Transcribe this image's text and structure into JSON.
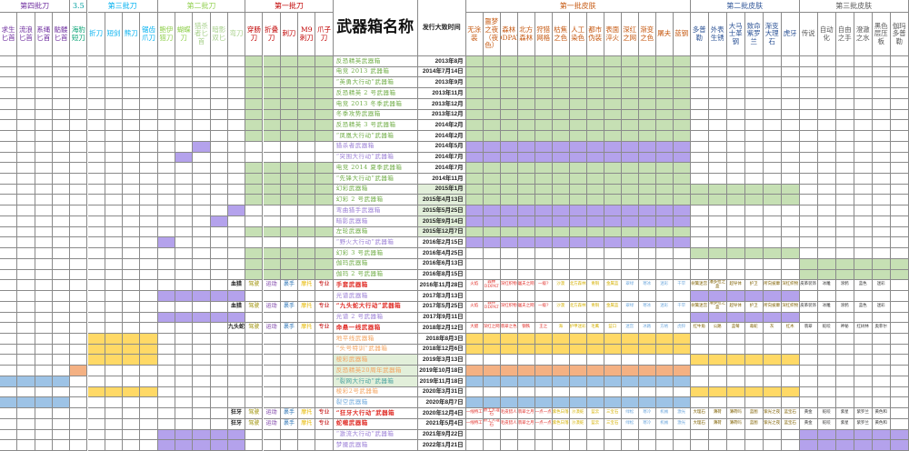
{
  "colors": {
    "green": "#c6e0b4",
    "purple": "#b4a2ec",
    "yellow": "#ffd966",
    "orange": "#f4b183",
    "blue": "#9dc3e6",
    "lightgreen": "#e2efda"
  },
  "groups": [
    {
      "label": "第四批刀",
      "from": 0,
      "to": 3,
      "color": "#7030a0"
    },
    {
      "label": "3.5",
      "from": 4,
      "to": 4,
      "color": "#00a0a0"
    },
    {
      "label": "第三批刀",
      "from": 5,
      "to": 8,
      "color": "#00b0f0"
    },
    {
      "label": "第二批刀",
      "from": 9,
      "to": 13,
      "color": "#92d050"
    },
    {
      "label": "第一批刀",
      "from": 14,
      "to": 18,
      "color": "#c00000"
    },
    {
      "label": "第一批皮肤",
      "from": 21,
      "to": 33,
      "color": "#c65911"
    },
    {
      "label": "第二批皮肤",
      "from": 34,
      "to": 39,
      "color": "#2f5597"
    },
    {
      "label": "第三批皮肤",
      "from": 40,
      "to": 45,
      "color": "#595959"
    }
  ],
  "title": "武器箱名称",
  "date_header": "发行大致时间",
  "columns": [
    {
      "label": "求生匕首",
      "color": "#7030a0"
    },
    {
      "label": "流浪匕首",
      "color": "#7030a0"
    },
    {
      "label": "系绳匕首",
      "color": "#7030a0"
    },
    {
      "label": "骷髅匕首",
      "color": "#7030a0"
    },
    {
      "label": "海豹短刀",
      "color": "#00a070"
    },
    {
      "label": "折刀",
      "color": "#00b0f0"
    },
    {
      "label": "短剑",
      "color": "#00b0f0"
    },
    {
      "label": "熊刀",
      "color": "#00b0f0"
    },
    {
      "label": "锯齿爪刀",
      "color": "#00b0f0"
    },
    {
      "label": "鲍伊猎刀",
      "color": "#92d050"
    },
    {
      "label": "蝴蝶刀",
      "color": "#92d050"
    },
    {
      "label": "猎杀者匕首",
      "color": "#a9d18e"
    },
    {
      "label": "暗影双匕",
      "color": "#a9d18e"
    },
    {
      "label": "弯刀",
      "color": "#a9d18e"
    },
    {
      "label": "穿肠刀",
      "color": "#c00000"
    },
    {
      "label": "折叠刀",
      "color": "#c00000"
    },
    {
      "label": "刺刀",
      "color": "#c00000"
    },
    {
      "label": "M9刺刀",
      "color": "#c00000"
    },
    {
      "label": "爪子刀",
      "color": "#c00000"
    },
    {
      "label": "",
      "color": ""
    },
    {
      "label": "",
      "color": ""
    },
    {
      "label": "无涂装",
      "color": "#c65911"
    },
    {
      "label": "噩梦之夜（夜色）",
      "color": "#c65911"
    },
    {
      "label": "森林DDPAT",
      "color": "#c65911"
    },
    {
      "label": "北方森林",
      "color": "#c65911"
    },
    {
      "label": "狩猎网格",
      "color": "#c65911"
    },
    {
      "label": "枯焦之色",
      "color": "#c65911"
    },
    {
      "label": "人工染色",
      "color": "#c65911"
    },
    {
      "label": "都市伪装",
      "color": "#c65911"
    },
    {
      "label": "表面淬火",
      "color": "#c65911"
    },
    {
      "label": "深红之网",
      "color": "#c65911"
    },
    {
      "label": "渐变之色",
      "color": "#c65911"
    },
    {
      "label": "屠夫",
      "color": "#c65911"
    },
    {
      "label": "蓝钢",
      "color": "#c65911"
    },
    {
      "label": "多普勒",
      "color": "#2f5597"
    },
    {
      "label": "外表生锈",
      "color": "#2f5597"
    },
    {
      "label": "大马士革钢",
      "color": "#2f5597"
    },
    {
      "label": "致命紫罗兰",
      "color": "#2f5597"
    },
    {
      "label": "渐变大理石",
      "color": "#2f5597"
    },
    {
      "label": "虎牙",
      "color": "#2f5597"
    },
    {
      "label": "传说",
      "color": "#595959"
    },
    {
      "label": "自动化",
      "color": "#595959"
    },
    {
      "label": "自由之手",
      "color": "#595959"
    },
    {
      "label": "澄澈之水",
      "color": "#595959"
    },
    {
      "label": "黑色层压板",
      "color": "#595959"
    },
    {
      "label": "伽玛多普勒",
      "color": "#595959"
    }
  ],
  "gloves": {
    "hunter_col": 13,
    "labels": [
      "驾驶",
      "运动",
      "裹手",
      "摩托",
      "专业"
    ],
    "colors": [
      "#9c8f00",
      "#7030a0",
      "#2e75b6",
      "#e6b800",
      "#c00000"
    ]
  },
  "rows": [
    {
      "name": "反恐精英武器箱",
      "date": "2013年8月",
      "tc": "#70ad47",
      "fills": [
        [
          14,
          18,
          "green"
        ],
        [
          21,
          33,
          "green"
        ]
      ]
    },
    {
      "name": "电竞 2013 武器箱",
      "date": "2014年7月14日",
      "tc": "#70ad47",
      "fills": [
        [
          14,
          18,
          "green"
        ],
        [
          21,
          33,
          "green"
        ]
      ]
    },
    {
      "name": "“英勇大行动”武器箱",
      "date": "2013年9月",
      "tc": "#70ad47",
      "fills": [
        [
          14,
          18,
          "green"
        ],
        [
          21,
          33,
          "green"
        ]
      ]
    },
    {
      "name": "反恐精英 2 号武器箱",
      "date": "2013年11月",
      "tc": "#70ad47",
      "fills": [
        [
          14,
          18,
          "green"
        ],
        [
          21,
          33,
          "green"
        ]
      ]
    },
    {
      "name": "电竞 2013 冬季武器箱",
      "date": "2013年12月",
      "tc": "#70ad47",
      "fills": [
        [
          14,
          18,
          "green"
        ],
        [
          21,
          33,
          "green"
        ]
      ]
    },
    {
      "name": "冬季攻势武器箱",
      "date": "2013年12月",
      "tc": "#70ad47",
      "fills": [
        [
          14,
          18,
          "green"
        ],
        [
          21,
          33,
          "green"
        ]
      ]
    },
    {
      "name": "反恐精英 3 号武器箱",
      "date": "2014年2月",
      "tc": "#70ad47",
      "fills": [
        [
          14,
          18,
          "green"
        ],
        [
          21,
          33,
          "green"
        ]
      ]
    },
    {
      "name": "“凤凰大行动”武器箱",
      "date": "2014年2月",
      "tc": "#70ad47",
      "fills": [
        [
          14,
          18,
          "green"
        ],
        [
          21,
          33,
          "green"
        ]
      ]
    },
    {
      "name": "猎杀者武器箱",
      "date": "2014年5月",
      "tc": "#9b7fd6",
      "fills": [
        [
          11,
          11,
          "purple"
        ],
        [
          21,
          33,
          "purple"
        ]
      ]
    },
    {
      "name": "“突围大行动”武器箱",
      "date": "2014年7月",
      "tc": "#9b7fd6",
      "fills": [
        [
          10,
          10,
          "purple"
        ],
        [
          21,
          33,
          "purple"
        ]
      ]
    },
    {
      "name": "电竞 2014 夏季武器箱",
      "date": "2014年7月",
      "tc": "#70ad47",
      "fills": [
        [
          14,
          18,
          "green"
        ],
        [
          21,
          33,
          "green"
        ]
      ]
    },
    {
      "name": "“先锋大行动”武器箱",
      "date": "2014年11月",
      "tc": "#70ad47",
      "fills": [
        [
          14,
          18,
          "green"
        ],
        [
          21,
          33,
          "green"
        ]
      ]
    },
    {
      "name": "幻彩武器箱",
      "date": "2015年1月",
      "tc": "#70ad47",
      "fills": [
        [
          14,
          18,
          "green"
        ],
        [
          20,
          20,
          "lightgreen"
        ],
        [
          21,
          33,
          "green"
        ],
        [
          34,
          39,
          "green"
        ]
      ]
    },
    {
      "name": "幻彩 2 号武器箱",
      "date": "2015年4月13日",
      "tc": "#70ad47",
      "fills": [
        [
          14,
          18,
          "green"
        ],
        [
          20,
          20,
          "lightgreen"
        ],
        [
          21,
          33,
          "green"
        ],
        [
          34,
          39,
          "green"
        ]
      ]
    },
    {
      "name": "弯曲猎手武器箱",
      "date": "2015年5月25日",
      "tc": "#9b7fd6",
      "fills": [
        [
          13,
          13,
          "purple"
        ],
        [
          20,
          20,
          "lightgreen"
        ],
        [
          21,
          33,
          "purple"
        ]
      ]
    },
    {
      "name": "暗影武器箱",
      "date": "2015年9月14日",
      "tc": "#9b7fd6",
      "fills": [
        [
          12,
          12,
          "purple"
        ],
        [
          20,
          20,
          "lightgreen"
        ],
        [
          21,
          33,
          "purple"
        ]
      ]
    },
    {
      "name": "左轮武器箱",
      "date": "2015年12月7日",
      "tc": "#70ad47",
      "fills": [
        [
          14,
          18,
          "green"
        ],
        [
          20,
          20,
          "lightgreen"
        ],
        [
          21,
          33,
          "green"
        ]
      ]
    },
    {
      "name": "“野火大行动”武器箱",
      "date": "2016年2月15日",
      "tc": "#9b7fd6",
      "fills": [
        [
          9,
          9,
          "purple"
        ],
        [
          21,
          33,
          "purple"
        ]
      ]
    },
    {
      "name": "幻彩 3 号武器箱",
      "date": "2016年4月25日",
      "tc": "#70ad47",
      "fills": [
        [
          14,
          18,
          "green"
        ],
        [
          34,
          39,
          "green"
        ]
      ]
    },
    {
      "name": "伽玛武器箱",
      "date": "2016年6月13日",
      "tc": "#70ad47",
      "fills": [
        [
          14,
          18,
          "green"
        ],
        [
          40,
          45,
          "green"
        ]
      ]
    },
    {
      "name": "伽玛 2 号武器箱",
      "date": "2016年8月15日",
      "tc": "#70ad47",
      "fills": [
        [
          14,
          18,
          "green"
        ],
        [
          40,
          45,
          "green"
        ]
      ]
    },
    {
      "name": "手套武器箱",
      "date": "2016年11月28日",
      "tc": "#e0302a",
      "bold": true,
      "hunter": "血猎",
      "skins": [
        "火焰",
        "森林DDPAT",
        "深红织物",
        "屠夫之网",
        "一级?",
        "沙漠",
        "北方森林",
        "青铜",
        "金属蓝",
        "翠绿",
        "寒冰",
        "迷彩",
        "干旱",
        "树篱迷宫",
        "潘多拉之盒",
        "超导体",
        "护卫",
        "所向披靡",
        "深红织物",
        "皮革装饰",
        "冰雕",
        "涂鸦",
        "蓝色",
        "迷彩",
        "",
        ""
      ],
      "fills": []
    },
    {
      "name": "光谱武器箱",
      "date": "2017年3月13日",
      "tc": "#9b7fd6",
      "fills": [
        [
          9,
          13,
          "purple"
        ],
        [
          34,
          39,
          "purple"
        ]
      ]
    },
    {
      "name": "“九头蛇大行动”武器箱",
      "date": "2017年5月25日",
      "tc": "#e0302a",
      "bold": true,
      "hunter": "血猎",
      "skins": [
        "火焰",
        "森林DDPAT",
        "深红织物",
        "屠夫之网",
        "一级?",
        "沙漠",
        "北方森林",
        "青铜",
        "金属蓝",
        "翠绿",
        "寒冰",
        "迷彩",
        "干旱",
        "树篱迷宫",
        "潘多拉之盒",
        "超导体",
        "护卫",
        "所向披靡",
        "深红织物",
        "皮革装饰",
        "冰雕",
        "涂鸦",
        "蓝色",
        "迷彩",
        "",
        ""
      ],
      "fills": []
    },
    {
      "name": "光谱 2 号武器箱",
      "date": "2017年9月11日",
      "tc": "#9b7fd6",
      "fills": [
        [
          9,
          13,
          "purple"
        ],
        [
          34,
          39,
          "purple"
        ]
      ]
    },
    {
      "name": "命悬一线武器箱",
      "date": "2018年2月12日",
      "tc": "#e0302a",
      "bold": true,
      "hunter": "九头蛇",
      "skins": [
        "大腊",
        "深红之网",
        "翡翠之色",
        "钢铁",
        "王之",
        "海",
        "护甲迷彩",
        "毛鹰",
        "蓝口",
        "迷宫",
        "冰路",
        "方格",
        "虎狩",
        "红牛角",
        "公路",
        "蓝莓",
        "毒蛇",
        "灰",
        "红木",
        "翡翠",
        "蛇咬",
        "神秘",
        "红树林",
        "奥菲尔",
        "",
        ""
      ],
      "fills": []
    },
    {
      "name": "地平线武器箱",
      "date": "2018年8月3日",
      "tc": "#f4a460",
      "fills": [
        [
          5,
          8,
          "yellow"
        ],
        [
          21,
          33,
          "yellow"
        ]
      ]
    },
    {
      "name": "“头号特训”武器箱",
      "date": "2018年12月6日",
      "tc": "#f4a460",
      "fills": [
        [
          5,
          8,
          "yellow"
        ],
        [
          21,
          33,
          "yellow"
        ]
      ]
    },
    {
      "name": "棱彩武器箱",
      "date": "2019年3月13日",
      "tc": "#f4a460",
      "fills": [
        [
          5,
          8,
          "yellow"
        ],
        [
          19,
          19,
          "lightgreen"
        ],
        [
          34,
          39,
          "yellow"
        ]
      ]
    },
    {
      "name": "反恐精英20周年武器箱",
      "date": "2019年10月18日",
      "tc": "#f4a460",
      "fills": [
        [
          4,
          4,
          "orange"
        ],
        [
          19,
          19,
          "lightgreen"
        ],
        [
          21,
          33,
          "orange"
        ]
      ]
    },
    {
      "name": "“裂网大行动”武器箱",
      "date": "2019年11月18日",
      "tc": "#4aa3a0",
      "fills": [
        [
          0,
          3,
          "blue"
        ],
        [
          19,
          19,
          "lightgreen"
        ],
        [
          21,
          33,
          "blue"
        ]
      ]
    },
    {
      "name": "棱彩2号武器箱",
      "date": "2020年3月31日",
      "tc": "#f4a460",
      "fills": [
        [
          5,
          8,
          "yellow"
        ],
        [
          34,
          39,
          "yellow"
        ]
      ]
    },
    {
      "name": "裂空武器箱",
      "date": "2020年8月7日",
      "tc": "#6fa8dc",
      "fills": [
        [
          0,
          3,
          "blue"
        ],
        [
          21,
          33,
          "blue"
        ]
      ]
    },
    {
      "name": "“狂牙大行动”武器箱",
      "date": "2020年12月4日",
      "tc": "#e0302a",
      "bold": true,
      "hunter": "狂牙",
      "skins": [
        "一线特工",
        "爵士大理石",
        "毛皮猎人",
        "翡翠之月",
        "一点一点",
        "紫色日落",
        "沙漠蛇",
        "蓝云",
        "三宝石",
        "绿松",
        "寒冷",
        "机械",
        "激光",
        "大理石",
        "薄荷",
        "薄荷吗",
        "蓝图",
        "紫光之夜",
        "蓝宝石",
        "黄金",
        "蛇咬",
        "紫星",
        "紫罗兰",
        "黄色和",
        "",
        ""
      ],
      "fills": []
    },
    {
      "name": "蛇噬武器箱",
      "date": "2021年5月4日",
      "tc": "#e0302a",
      "bold": true,
      "hunter": "狂牙",
      "skins": [
        "一线特工",
        "爵士大理石",
        "毛皮猎人",
        "翡翠之月",
        "一点一点",
        "紫色日落",
        "沙漠蛇",
        "蓝云",
        "三宝石",
        "绿松",
        "寒冷",
        "机械",
        "激光",
        "大理石",
        "薄荷",
        "薄荷吗",
        "蓝图",
        "紫光之夜",
        "蓝宝石",
        "黄金",
        "蛇咬",
        "紫星",
        "紫罗兰",
        "黄色和",
        "",
        ""
      ],
      "fills": []
    },
    {
      "name": "“激流大行动”武器箱",
      "date": "2021年9月22日",
      "tc": "#9b7fd6",
      "fills": [
        [
          9,
          13,
          "purple"
        ],
        [
          40,
          45,
          "purple"
        ]
      ]
    },
    {
      "name": "梦魇武器箱",
      "date": "2022年1月21日",
      "tc": "#9b7fd6",
      "fills": [
        [
          9,
          13,
          "purple"
        ],
        [
          40,
          45,
          "purple"
        ]
      ]
    }
  ]
}
